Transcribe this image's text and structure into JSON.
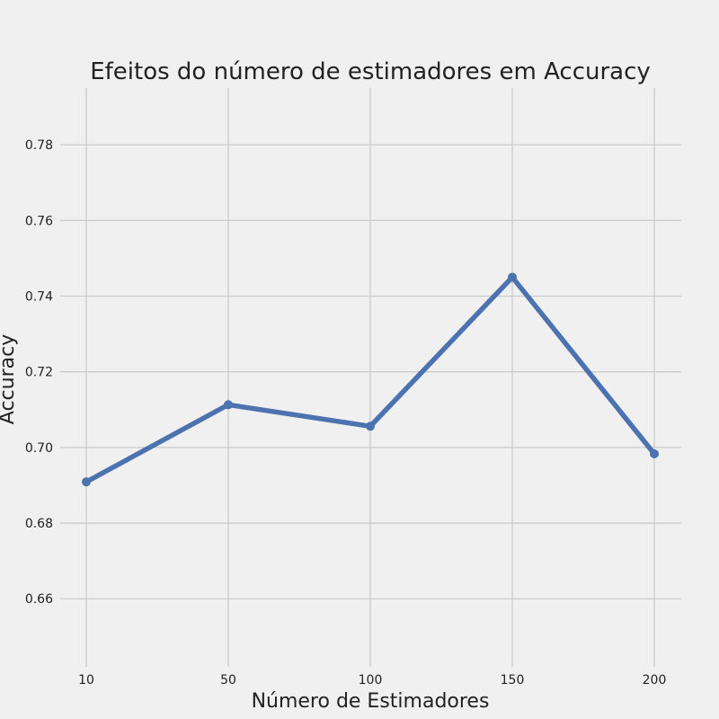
{
  "chart_data": {
    "type": "line",
    "title": "Efeitos do número de estimadores em Accuracy",
    "xlabel": "Número de Estimadores",
    "ylabel": "Accuracy",
    "categories": [
      "10",
      "50",
      "100",
      "150",
      "200"
    ],
    "series": [
      {
        "values": [
          0.6909,
          0.7113,
          0.7056,
          0.745,
          0.6983
        ],
        "color": "#4c72b0"
      }
    ],
    "ylim": [
      0.642,
      0.795
    ],
    "yticks": [
      "0.66",
      "0.68",
      "0.70",
      "0.72",
      "0.74",
      "0.76",
      "0.78"
    ],
    "grid": true,
    "background": "#f0f0f0",
    "grid_color": "#cbcbcb",
    "marker": "circle"
  }
}
